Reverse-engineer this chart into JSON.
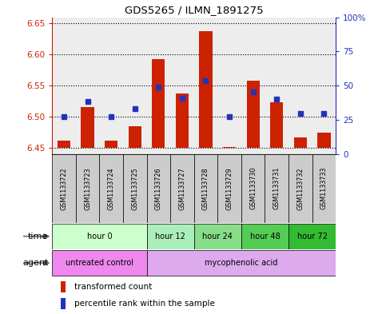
{
  "title": "GDS5265 / ILMN_1891275",
  "samples": [
    "GSM1133722",
    "GSM1133723",
    "GSM1133724",
    "GSM1133725",
    "GSM1133726",
    "GSM1133727",
    "GSM1133728",
    "GSM1133729",
    "GSM1133730",
    "GSM1133731",
    "GSM1133732",
    "GSM1133733"
  ],
  "bar_bottom": 6.45,
  "bar_tops": [
    6.461,
    6.515,
    6.461,
    6.484,
    6.593,
    6.537,
    6.638,
    6.451,
    6.558,
    6.523,
    6.467,
    6.474
  ],
  "blue_values": [
    6.5,
    6.525,
    6.5,
    6.513,
    6.548,
    6.53,
    6.558,
    6.5,
    6.54,
    6.528,
    6.505,
    6.505
  ],
  "ylim_left": [
    6.44,
    6.66
  ],
  "ylim_right": [
    0,
    100
  ],
  "yticks_left": [
    6.45,
    6.5,
    6.55,
    6.6,
    6.65
  ],
  "yticks_right": [
    0,
    25,
    50,
    75,
    100
  ],
  "ytick_labels_right": [
    "0",
    "25",
    "50",
    "75",
    "100%"
  ],
  "bar_color": "#cc2200",
  "blue_color": "#2233bb",
  "grid_color": "#000000",
  "bg_bar_color": "#cccccc",
  "time_groups": [
    {
      "label": "hour 0",
      "start": 0,
      "end": 4,
      "color": "#ccffcc"
    },
    {
      "label": "hour 12",
      "start": 4,
      "end": 6,
      "color": "#aaeebb"
    },
    {
      "label": "hour 24",
      "start": 6,
      "end": 8,
      "color": "#88dd88"
    },
    {
      "label": "hour 48",
      "start": 8,
      "end": 10,
      "color": "#55cc55"
    },
    {
      "label": "hour 72",
      "start": 10,
      "end": 12,
      "color": "#33bb33"
    }
  ],
  "agent_groups": [
    {
      "label": "untreated control",
      "start": 0,
      "end": 4,
      "color": "#ee88ee"
    },
    {
      "label": "mycophenolic acid",
      "start": 4,
      "end": 12,
      "color": "#ddaaee"
    }
  ],
  "legend_items": [
    {
      "label": "transformed count",
      "color": "#cc2200"
    },
    {
      "label": "percentile rank within the sample",
      "color": "#2233bb"
    }
  ],
  "figsize": [
    4.83,
    3.93
  ],
  "dpi": 100
}
